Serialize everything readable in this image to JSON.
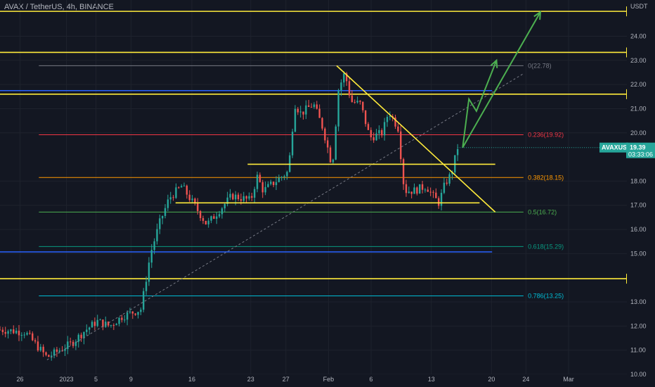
{
  "header": {
    "symbol_line": "AVAX / TetherUS, 4h, BINANCE",
    "currency": "USDT"
  },
  "colors": {
    "background": "#131722",
    "grid": "#1e222d",
    "up": "#26a69a",
    "down": "#ef5350",
    "yellow_line": "#ffeb3b",
    "blue_line": "#2962ff",
    "green_arrow": "#4caf50",
    "trend": "#787b86",
    "price_tag": "#26a69a"
  },
  "chart_data": {
    "type": "candlestick",
    "ylim": [
      10,
      25.5
    ],
    "y_ticks": [
      "10.00",
      "11.00",
      "12.00",
      "13.00",
      "15.00",
      "16.00",
      "17.00",
      "18.00",
      "20.00",
      "21.00",
      "22.00",
      "23.00",
      "24.00"
    ],
    "x_ticks": [
      {
        "label": "26",
        "pos": 0.032
      },
      {
        "label": "2023",
        "pos": 0.106
      },
      {
        "label": "5",
        "pos": 0.153
      },
      {
        "label": "9",
        "pos": 0.209
      },
      {
        "label": "16",
        "pos": 0.306
      },
      {
        "label": "23",
        "pos": 0.4
      },
      {
        "label": "27",
        "pos": 0.456
      },
      {
        "label": "Feb",
        "pos": 0.524
      },
      {
        "label": "6",
        "pos": 0.592
      },
      {
        "label": "13",
        "pos": 0.688
      },
      {
        "label": "20",
        "pos": 0.784
      },
      {
        "label": "24",
        "pos": 0.839
      },
      {
        "label": "Mar",
        "pos": 0.907
      }
    ],
    "current_price": {
      "value": 19.39,
      "label": "19.39",
      "symbol": "AVAXUSDT",
      "countdown": "03:33:06"
    },
    "horizontal_levels": [
      {
        "value": 25.03,
        "label": "25.03",
        "color": "#ffeb3b"
      },
      {
        "value": 23.33,
        "label": "23.33",
        "color": "#ffeb3b"
      },
      {
        "value": 21.6,
        "label": "21.60",
        "color": "#ffeb3b"
      },
      {
        "value": 13.96,
        "label": "13.96",
        "color": "#ffeb3b"
      }
    ],
    "blue_levels": [
      21.75,
      15.07
    ],
    "fib_levels": [
      {
        "value": 22.78,
        "label": "0(22.78)",
        "color": "#787b86"
      },
      {
        "value": 19.92,
        "label": "0.236(19.92)",
        "color": "#f23645"
      },
      {
        "value": 18.15,
        "label": "0.382(18.15)",
        "color": "#ff9800"
      },
      {
        "value": 16.72,
        "label": "0.5(16.72)",
        "color": "#4caf50"
      },
      {
        "value": 15.29,
        "label": "0.618(15.29)",
        "color": "#089981"
      },
      {
        "value": 13.25,
        "label": "0.786(13.25)",
        "color": "#00bcd4"
      }
    ],
    "close_path": [
      [
        0.0,
        11.85
      ],
      [
        0.02,
        11.8
      ],
      [
        0.04,
        11.75
      ],
      [
        0.055,
        11.3
      ],
      [
        0.075,
        10.7
      ],
      [
        0.095,
        11.0
      ],
      [
        0.115,
        11.3
      ],
      [
        0.135,
        11.8
      ],
      [
        0.155,
        12.2
      ],
      [
        0.175,
        12.0
      ],
      [
        0.195,
        12.4
      ],
      [
        0.225,
        12.7
      ],
      [
        0.24,
        15.0
      ],
      [
        0.255,
        16.3
      ],
      [
        0.27,
        17.3
      ],
      [
        0.29,
        17.8
      ],
      [
        0.31,
        17.0
      ],
      [
        0.33,
        16.2
      ],
      [
        0.35,
        16.8
      ],
      [
        0.37,
        17.4
      ],
      [
        0.385,
        17.3
      ],
      [
        0.4,
        17.2
      ],
      [
        0.41,
        18.2
      ],
      [
        0.42,
        17.6
      ],
      [
        0.44,
        18.0
      ],
      [
        0.46,
        18.4
      ],
      [
        0.47,
        21.2
      ],
      [
        0.48,
        20.8
      ],
      [
        0.5,
        21.2
      ],
      [
        0.515,
        20.2
      ],
      [
        0.53,
        18.6
      ],
      [
        0.54,
        21.8
      ],
      [
        0.55,
        22.5
      ],
      [
        0.56,
        21.3
      ],
      [
        0.575,
        21.2
      ],
      [
        0.59,
        19.8
      ],
      [
        0.61,
        20.0
      ],
      [
        0.62,
        20.9
      ],
      [
        0.635,
        20.2
      ],
      [
        0.645,
        17.6
      ],
      [
        0.66,
        17.6
      ],
      [
        0.68,
        17.8
      ],
      [
        0.69,
        17.4
      ],
      [
        0.7,
        17.1
      ],
      [
        0.71,
        17.9
      ],
      [
        0.72,
        18.3
      ],
      [
        0.73,
        19.39
      ]
    ],
    "candle_count": 170,
    "drawings": {
      "up_trend": [
        [
          0.075,
          10.6
        ],
        [
          0.835,
          22.45
        ]
      ],
      "down_trend": [
        [
          0.537,
          22.78
        ],
        [
          0.79,
          16.72
        ]
      ],
      "upper_box": [
        [
          0.395,
          18.7
        ],
        [
          0.79,
          18.7
        ]
      ],
      "lower_box": [
        [
          0.28,
          17.1
        ],
        [
          0.765,
          17.1
        ]
      ],
      "arrows": [
        [
          [
            0.738,
            19.39
          ],
          [
            0.748,
            21.4
          ],
          [
            0.76,
            20.9
          ],
          [
            0.792,
            23.0
          ]
        ],
        [
          [
            0.738,
            19.39
          ],
          [
            0.862,
            25.0
          ]
        ]
      ]
    }
  }
}
